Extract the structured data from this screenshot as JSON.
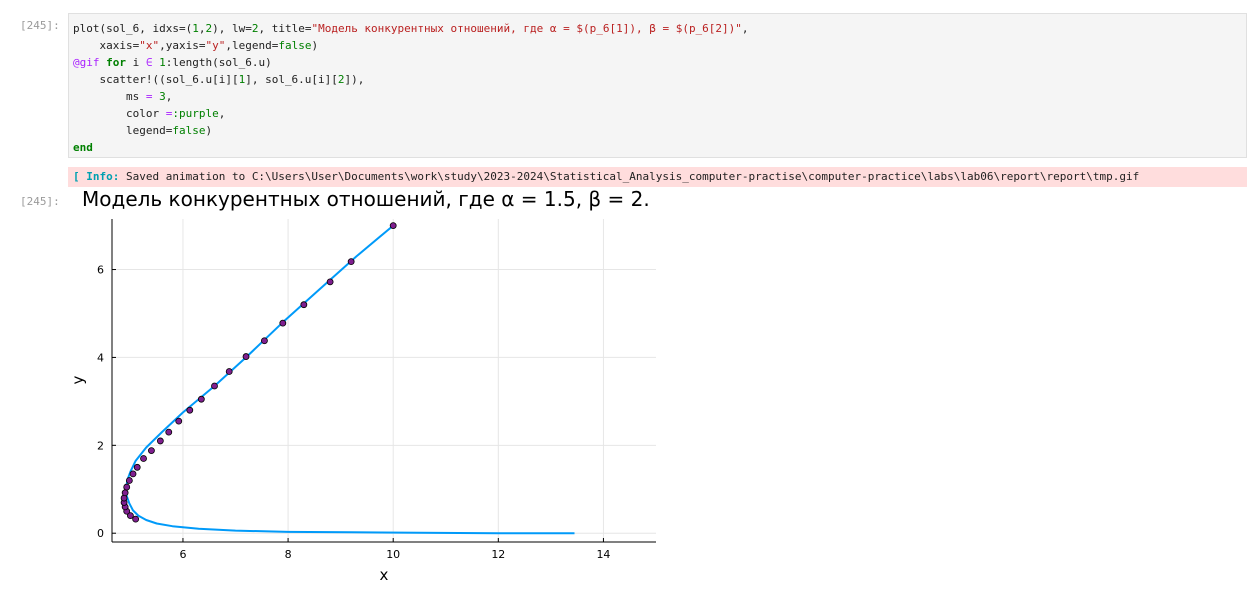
{
  "cells": {
    "input_prompt": "[245]:",
    "output_prompt": "[245]:"
  },
  "code_lines": [
    "plot(sol_6, idxs=(1,2), lw=2, title=\"Модель конкурентных отношений, где α = $(p_6[1]), β = $(p_6[2])\",",
    "    xaxis=\"x\",yaxis=\"y\",legend=false)",
    "@gif for i ∈ 1:length(sol_6.u)",
    "    scatter!((sol_6.u[i][1], sol_6.u[i][2]),",
    "        ms = 3,",
    "        color =:purple,",
    "        legend=false)",
    "end"
  ],
  "stderr": {
    "label": "[ Info:",
    "message": "Saved animation to C:\\Users\\User\\Documents\\work\\study\\2023-2024\\Statistical_Analysis_computer-practise\\computer-practice\\labs\\lab06\\report\\report\\tmp.gif"
  },
  "chart_data": {
    "type": "line",
    "title": "Модель конкурентных отношений, где α = 1.5, β = 2.",
    "xlabel": "x",
    "ylabel": "y",
    "xlim": [
      4.65,
      15.0
    ],
    "ylim": [
      -0.2,
      7.15
    ],
    "xticks": [
      6,
      8,
      10,
      12,
      14
    ],
    "yticks": [
      0,
      2,
      4,
      6
    ],
    "grid": true,
    "legend": false,
    "series": [
      {
        "line_color": "#009af9",
        "x": [
          13.45,
          12.0,
          10.5,
          9.2,
          8.0,
          7.0,
          6.3,
          5.8,
          5.5,
          5.3,
          5.15,
          5.05,
          4.98,
          4.93,
          4.92,
          4.94,
          5.0,
          5.1,
          5.3,
          5.6,
          6.0,
          6.6,
          7.2,
          7.9,
          8.6,
          9.3,
          10.0
        ],
        "y": [
          0.0,
          0.0,
          0.01,
          0.02,
          0.03,
          0.06,
          0.1,
          0.16,
          0.22,
          0.3,
          0.4,
          0.52,
          0.68,
          0.85,
          1.0,
          1.2,
          1.4,
          1.65,
          1.95,
          2.3,
          2.75,
          3.35,
          4.0,
          4.8,
          5.55,
          6.3,
          7.0
        ]
      }
    ],
    "points": {
      "color": "#7f1f8f",
      "x": [
        5.1,
        5.0,
        4.93,
        4.9,
        4.88,
        4.88,
        4.9,
        4.93,
        4.98,
        5.05,
        5.13,
        5.25,
        5.4,
        5.57,
        5.73,
        5.92,
        6.13,
        6.35,
        6.6,
        6.88,
        7.2,
        7.55,
        7.9,
        8.3,
        8.8,
        9.2,
        10.0
      ],
      "y": [
        0.32,
        0.4,
        0.5,
        0.6,
        0.7,
        0.8,
        0.92,
        1.05,
        1.2,
        1.35,
        1.5,
        1.7,
        1.88,
        2.1,
        2.3,
        2.55,
        2.8,
        3.05,
        3.35,
        3.68,
        4.02,
        4.38,
        4.78,
        5.2,
        5.72,
        6.18,
        7.0
      ]
    }
  }
}
